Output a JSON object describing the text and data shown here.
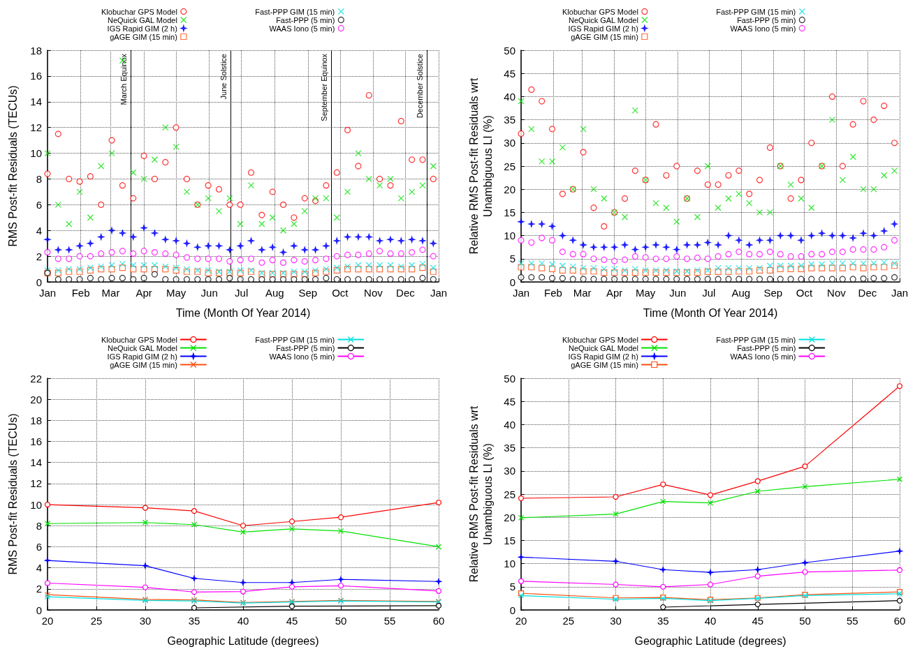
{
  "chart_data": [
    {
      "type": "scatter",
      "xlabel": "Time (Month Of Year 2014)",
      "ylabel": "RMS Post-fit Residuals (TECUs)",
      "legend": "top",
      "grid": true,
      "xlim": [
        "2014-01-01",
        "2015-01-01"
      ],
      "xticks": [
        {
          "value": "2014-01-01",
          "label": "Jan"
        },
        {
          "value": "2014-02-01",
          "label": "Feb"
        },
        {
          "value": "2014-03-01",
          "label": "Mar"
        },
        {
          "value": "2014-04-01",
          "label": "Apr"
        },
        {
          "value": "2014-05-01",
          "label": "May"
        },
        {
          "value": "2014-06-01",
          "label": "Jun"
        },
        {
          "value": "2014-07-01",
          "label": "Jul"
        },
        {
          "value": "2014-08-01",
          "label": "Aug"
        },
        {
          "value": "2014-09-01",
          "label": "Sep"
        },
        {
          "value": "2014-10-01",
          "label": "Oct"
        },
        {
          "value": "2014-11-01",
          "label": "Nov"
        },
        {
          "value": "2014-12-01",
          "label": "Dec"
        },
        {
          "value": "2015-01-01",
          "label": "Jan"
        }
      ],
      "ylim": [
        0,
        18
      ],
      "yticks": [
        0,
        2,
        4,
        6,
        8,
        10,
        12,
        14,
        16,
        18
      ],
      "x": [
        "2014-01-01",
        "2014-01-11",
        "2014-01-21",
        "2014-01-31",
        "2014-02-10",
        "2014-02-20",
        "2014-03-02",
        "2014-03-12",
        "2014-03-22",
        "2014-04-01",
        "2014-04-11",
        "2014-04-21",
        "2014-05-01",
        "2014-05-11",
        "2014-05-21",
        "2014-05-31",
        "2014-06-10",
        "2014-06-20",
        "2014-06-30",
        "2014-07-10",
        "2014-07-20",
        "2014-07-30",
        "2014-08-09",
        "2014-08-19",
        "2014-08-29",
        "2014-09-08",
        "2014-09-18",
        "2014-09-28",
        "2014-10-08",
        "2014-10-18",
        "2014-10-28",
        "2014-11-07",
        "2014-11-17",
        "2014-11-27",
        "2014-12-07",
        "2014-12-17",
        "2014-12-27"
      ],
      "ref_lines": [
        {
          "axis": "x",
          "value": "2014-03-20",
          "label": "March Equinox",
          "color": "#000000"
        },
        {
          "axis": "x",
          "value": "2014-06-21",
          "label": "June Solstice",
          "color": "#000000"
        },
        {
          "axis": "x",
          "value": "2014-09-23",
          "label": "September Equinox",
          "color": "#000000"
        },
        {
          "axis": "x",
          "value": "2014-12-21",
          "label": "December Solstice",
          "color": "#000000"
        }
      ],
      "series": [
        {
          "name": "Klobuchar GPS Model",
          "color": "#ff0000",
          "marker": "circle",
          "values": [
            8.4,
            11.5,
            8.0,
            7.8,
            8.2,
            6.0,
            11.0,
            7.5,
            6.5,
            9.8,
            8.0,
            9.3,
            12.0,
            8.0,
            6.0,
            7.5,
            7.2,
            6.0,
            6.0,
            8.5,
            5.2,
            7.0,
            6.0,
            5.0,
            6.5,
            6.3,
            7.5,
            8.5,
            11.8,
            9.0,
            14.5,
            8.0,
            7.5,
            12.5,
            9.5,
            9.5,
            8.0
          ]
        },
        {
          "name": "NeQuick GAL Model",
          "color": "#00e000",
          "marker": "cross",
          "values": [
            10,
            6,
            4.5,
            7,
            5,
            9,
            10,
            17.2,
            8.5,
            8,
            9.5,
            12,
            10.5,
            7,
            6,
            6.5,
            5.5,
            6.5,
            4.5,
            7.5,
            4.5,
            5,
            4,
            4.5,
            5.5,
            6.5,
            6.5,
            5,
            7,
            10,
            8,
            7.5,
            8,
            6.5,
            7,
            7.5,
            9
          ]
        },
        {
          "name": "IGS Rapid GIM (2 h)",
          "color": "#0000ff",
          "marker": "star",
          "values": [
            3.3,
            2.5,
            2.5,
            2.8,
            3.0,
            3.5,
            4.0,
            3.8,
            3.5,
            4.2,
            3.8,
            3.3,
            3.2,
            3.0,
            2.7,
            2.8,
            2.8,
            2.5,
            2.8,
            3.2,
            2.5,
            2.7,
            2.3,
            2.8,
            2.5,
            2.5,
            2.8,
            3.2,
            3.5,
            3.5,
            3.5,
            3.2,
            3.3,
            3.2,
            3.3,
            3.2,
            3.0
          ]
        },
        {
          "name": "gAGE GIM (15 min)",
          "color": "#ff5010",
          "marker": "square",
          "values": [
            0.7,
            0.7,
            0.8,
            0.8,
            0.9,
            1.0,
            1.0,
            1.1,
            1.0,
            1.0,
            1.0,
            1.0,
            0.9,
            0.8,
            0.8,
            0.7,
            0.7,
            0.7,
            0.7,
            0.8,
            0.6,
            0.6,
            0.6,
            0.6,
            0.6,
            0.7,
            0.8,
            0.9,
            1.0,
            1.0,
            1.0,
            1.0,
            1.0,
            1.0,
            1.0,
            1.1,
            0.8
          ]
        },
        {
          "name": "Fast-PPP GIM (15 min)",
          "color": "#00e0e0",
          "marker": "cross",
          "values": [
            0.9,
            0.9,
            1.0,
            1.0,
            1.1,
            1.2,
            1.3,
            1.4,
            1.3,
            1.3,
            1.3,
            1.2,
            1.1,
            1.0,
            0.9,
            0.9,
            0.8,
            0.8,
            0.9,
            0.9,
            0.7,
            0.7,
            0.7,
            0.8,
            0.8,
            0.9,
            1.0,
            1.1,
            1.2,
            1.3,
            1.3,
            1.3,
            1.3,
            1.2,
            1.3,
            1.4,
            1.1
          ]
        },
        {
          "name": "Fast-PPP (5 min)",
          "color": "#000000",
          "marker": "circle",
          "values": [
            0.7,
            0.2,
            0.2,
            0.2,
            0.3,
            0.2,
            0.3,
            0.3,
            0.2,
            0.3,
            0.6,
            0.2,
            0.2,
            0.2,
            0.2,
            0.2,
            0.2,
            0.3,
            0.2,
            0.2,
            0.2,
            0.2,
            0.2,
            0.2,
            0.2,
            0.2,
            0.3,
            0.2,
            0.2,
            0.2,
            0.2,
            0.2,
            0.2,
            0.2,
            0.2,
            0.3,
            0.2
          ]
        },
        {
          "name": "WAAS Iono (5 min)",
          "color": "#ff00ff",
          "marker": "circle",
          "values": [
            2.3,
            1.8,
            1.8,
            2.0,
            2.0,
            2.2,
            2.3,
            2.4,
            2.2,
            2.4,
            2.3,
            2.2,
            2.1,
            1.9,
            1.8,
            1.8,
            1.8,
            1.6,
            1.7,
            1.8,
            1.5,
            1.7,
            1.5,
            1.7,
            1.6,
            1.7,
            1.8,
            2.0,
            2.1,
            2.1,
            2.2,
            2.4,
            2.2,
            2.2,
            2.3,
            2.5,
            2.0
          ]
        }
      ]
    },
    {
      "type": "scatter",
      "xlabel": "Time (Month Of Year 2014)",
      "ylabel": "Relative RMS Post-fit Residuals wrt\nUnambiguous LI (%)",
      "legend": "top",
      "grid": true,
      "xlim": [
        "2014-01-01",
        "2015-01-01"
      ],
      "xticks": [
        {
          "value": "2014-01-01",
          "label": "Jan"
        },
        {
          "value": "2014-02-01",
          "label": "Feb"
        },
        {
          "value": "2014-03-01",
          "label": "Mar"
        },
        {
          "value": "2014-04-01",
          "label": "Apr"
        },
        {
          "value": "2014-05-01",
          "label": "May"
        },
        {
          "value": "2014-06-01",
          "label": "Jun"
        },
        {
          "value": "2014-07-01",
          "label": "Jul"
        },
        {
          "value": "2014-08-01",
          "label": "Aug"
        },
        {
          "value": "2014-09-01",
          "label": "Sep"
        },
        {
          "value": "2014-10-01",
          "label": "Oct"
        },
        {
          "value": "2014-11-01",
          "label": "Nov"
        },
        {
          "value": "2014-12-01",
          "label": "Dec"
        },
        {
          "value": "2015-01-01",
          "label": "Jan"
        }
      ],
      "ylim": [
        0,
        50
      ],
      "yticks": [
        0,
        5,
        10,
        15,
        20,
        25,
        30,
        35,
        40,
        45,
        50
      ],
      "x": [
        "2014-01-01",
        "2014-01-11",
        "2014-01-21",
        "2014-01-31",
        "2014-02-10",
        "2014-02-20",
        "2014-03-02",
        "2014-03-12",
        "2014-03-22",
        "2014-04-01",
        "2014-04-11",
        "2014-04-21",
        "2014-05-01",
        "2014-05-11",
        "2014-05-21",
        "2014-05-31",
        "2014-06-10",
        "2014-06-20",
        "2014-06-30",
        "2014-07-10",
        "2014-07-20",
        "2014-07-30",
        "2014-08-09",
        "2014-08-19",
        "2014-08-29",
        "2014-09-08",
        "2014-09-18",
        "2014-09-28",
        "2014-10-08",
        "2014-10-18",
        "2014-10-28",
        "2014-11-07",
        "2014-11-17",
        "2014-11-27",
        "2014-12-07",
        "2014-12-17",
        "2014-12-27"
      ],
      "series": [
        {
          "name": "Klobuchar GPS Model",
          "color": "#ff0000",
          "marker": "circle",
          "values": [
            32,
            41.5,
            39,
            33,
            19,
            20,
            28,
            16,
            12,
            15,
            18,
            24,
            22,
            34,
            23,
            25,
            18,
            24,
            21,
            21,
            23,
            24,
            19,
            22,
            29,
            25,
            18,
            22,
            30,
            25,
            40,
            25,
            34,
            39,
            35,
            38,
            30
          ]
        },
        {
          "name": "NeQuick GAL Model",
          "color": "#00e000",
          "marker": "cross",
          "values": [
            39,
            33,
            26,
            26,
            29,
            20,
            33,
            20,
            18,
            15,
            14,
            37,
            22,
            17,
            16,
            13,
            18,
            14,
            25,
            16,
            18,
            19,
            17,
            15,
            15,
            25,
            21,
            18,
            16,
            25,
            35,
            22,
            27,
            20,
            20,
            23,
            24
          ]
        },
        {
          "name": "IGS Rapid GIM (2 h)",
          "color": "#0000ff",
          "marker": "star",
          "values": [
            13,
            12.5,
            12.5,
            12,
            10,
            9,
            8,
            7.5,
            7.5,
            7.5,
            8,
            7,
            7.5,
            8,
            7.5,
            7,
            8,
            8,
            8.5,
            8,
            10,
            9,
            8,
            9,
            9,
            10,
            10,
            9,
            10,
            10.5,
            10,
            10,
            9.5,
            10.5,
            10,
            11,
            12.5
          ]
        },
        {
          "name": "gAGE GIM (15 min)",
          "color": "#ff5010",
          "marker": "square",
          "values": [
            3.2,
            3.2,
            3,
            2.8,
            2.5,
            2.5,
            2.3,
            2.3,
            2,
            2,
            2,
            2,
            2,
            2,
            2,
            2,
            2,
            2,
            2.2,
            2.2,
            2.2,
            2.3,
            2.3,
            2.5,
            2.5,
            2.8,
            2.8,
            2.8,
            3,
            3,
            3,
            3,
            3.2,
            3,
            3.2,
            3.2,
            3.5
          ]
        },
        {
          "name": "Fast-PPP GIM (15 min)",
          "color": "#00e0e0",
          "marker": "cross",
          "values": [
            4,
            4,
            4,
            3.8,
            3.5,
            3.3,
            3,
            3,
            2.8,
            2.8,
            2.5,
            2.8,
            2.5,
            2.5,
            2.5,
            2.3,
            2.3,
            2.5,
            2.5,
            3,
            3,
            3,
            3,
            3,
            3.5,
            3.5,
            3.5,
            3.5,
            3.8,
            3.8,
            4,
            4,
            4,
            4,
            4,
            4.2,
            4
          ]
        },
        {
          "name": "Fast-PPP (5 min)",
          "color": "#000000",
          "marker": "circle",
          "values": [
            1,
            1,
            1,
            0.8,
            0.8,
            0.6,
            0.6,
            0.6,
            0.6,
            0.6,
            0.6,
            0.6,
            0.6,
            0.6,
            0.6,
            0.6,
            0.6,
            0.6,
            0.6,
            0.6,
            0.6,
            0.6,
            0.6,
            0.6,
            0.6,
            0.6,
            0.6,
            0.6,
            0.6,
            0.6,
            0.6,
            0.6,
            0.6,
            0.7,
            0.8,
            0.8,
            1
          ]
        },
        {
          "name": "WAAS Iono (5 min)",
          "color": "#ff00ff",
          "marker": "circle",
          "values": [
            9,
            8.5,
            9.5,
            9,
            6.5,
            6,
            6,
            5,
            4.8,
            4.5,
            4.8,
            5.5,
            5.3,
            5,
            5,
            5.5,
            5,
            5.2,
            5,
            5.5,
            6,
            6.5,
            6,
            6,
            6.5,
            6,
            5.5,
            5.5,
            6,
            6,
            6.5,
            6.5,
            7,
            7,
            7,
            7.5,
            9
          ]
        }
      ]
    },
    {
      "type": "line",
      "xlabel": "Geographic Latitude (degrees)",
      "ylabel": "RMS Post-fit Residuals (TECUs)",
      "legend": "top",
      "grid": true,
      "xlim": [
        20,
        60
      ],
      "xticks": [
        20,
        25,
        30,
        35,
        40,
        45,
        50,
        55,
        60
      ],
      "ylim": [
        0,
        22
      ],
      "yticks": [
        0,
        2,
        4,
        6,
        8,
        10,
        12,
        14,
        16,
        18,
        20,
        22
      ],
      "x": [
        20,
        30,
        35,
        40,
        45,
        50,
        60
      ],
      "series": [
        {
          "name": "Klobuchar GPS Model",
          "color": "#ff0000",
          "marker": "circle",
          "values": [
            10,
            9.7,
            9.4,
            8,
            8.4,
            8.8,
            10.2
          ]
        },
        {
          "name": "NeQuick GAL Model",
          "color": "#00e000",
          "marker": "cross",
          "values": [
            8.2,
            8.3,
            8.1,
            7.4,
            7.7,
            7.5,
            6.0
          ]
        },
        {
          "name": "IGS Rapid GIM (2 h)",
          "color": "#0000ff",
          "marker": "star",
          "values": [
            4.7,
            4.2,
            3.0,
            2.6,
            2.6,
            2.9,
            2.7
          ]
        },
        {
          "name": "gAGE GIM (15 min)",
          "color": "#ff5010",
          "marker": "cross",
          "values": [
            1.45,
            1.0,
            0.95,
            0.7,
            0.8,
            0.9,
            0.8
          ]
        },
        {
          "name": "Fast-PPP GIM (15 min)",
          "color": "#00e0e0",
          "marker": "cross",
          "values": [
            1.25,
            0.9,
            0.85,
            0.65,
            0.75,
            0.85,
            0.75
          ]
        },
        {
          "name": "Fast-PPP (5 min)",
          "color": "#000000",
          "marker": "circle",
          "x": [
            35,
            45,
            60
          ],
          "values": [
            0.2,
            0.35,
            0.4
          ]
        },
        {
          "name": "WAAS Iono (5 min)",
          "color": "#ff00ff",
          "marker": "circle",
          "values": [
            2.55,
            2.15,
            1.7,
            1.75,
            2.2,
            2.3,
            1.8
          ]
        }
      ]
    },
    {
      "type": "line",
      "xlabel": "Geographic Latitude (degrees)",
      "ylabel": "Relative RMS Post-fit Residuals wrt\nUnambiguous LI (%)",
      "legend": "top",
      "grid": true,
      "xlim": [
        20,
        60
      ],
      "xticks": [
        20,
        25,
        30,
        35,
        40,
        45,
        50,
        55,
        60
      ],
      "ylim": [
        0,
        50
      ],
      "yticks": [
        0,
        5,
        10,
        15,
        20,
        25,
        30,
        35,
        40,
        45,
        50
      ],
      "x": [
        20,
        30,
        35,
        40,
        45,
        50,
        60
      ],
      "series": [
        {
          "name": "Klobuchar GPS Model",
          "color": "#ff0000",
          "marker": "circle",
          "values": [
            24.1,
            24.4,
            27.1,
            24.8,
            27.8,
            31,
            48.3
          ]
        },
        {
          "name": "NeQuick GAL Model",
          "color": "#00e000",
          "marker": "cross",
          "values": [
            19.9,
            20.7,
            23.4,
            23.1,
            25.6,
            26.6,
            28.2
          ]
        },
        {
          "name": "IGS Rapid GIM (2 h)",
          "color": "#0000ff",
          "marker": "star",
          "values": [
            11.4,
            10.5,
            8.7,
            8.1,
            8.7,
            10.2,
            12.7
          ]
        },
        {
          "name": "gAGE GIM (15 min)",
          "color": "#ff5010",
          "marker": "square",
          "values": [
            3.6,
            2.6,
            2.7,
            2.2,
            2.6,
            3.3,
            3.9
          ]
        },
        {
          "name": "Fast-PPP GIM (15 min)",
          "color": "#00e0e0",
          "marker": "cross",
          "values": [
            3.1,
            2.3,
            2.5,
            2.0,
            2.5,
            3.1,
            3.5
          ]
        },
        {
          "name": "Fast-PPP (5 min)",
          "color": "#000000",
          "marker": "circle",
          "x": [
            35,
            45,
            60
          ],
          "values": [
            0.6,
            1.2,
            2.0
          ]
        },
        {
          "name": "WAAS Iono (5 min)",
          "color": "#ff00ff",
          "marker": "circle",
          "values": [
            6.2,
            5.5,
            5.0,
            5.5,
            7.3,
            8.2,
            8.6
          ]
        }
      ]
    }
  ]
}
